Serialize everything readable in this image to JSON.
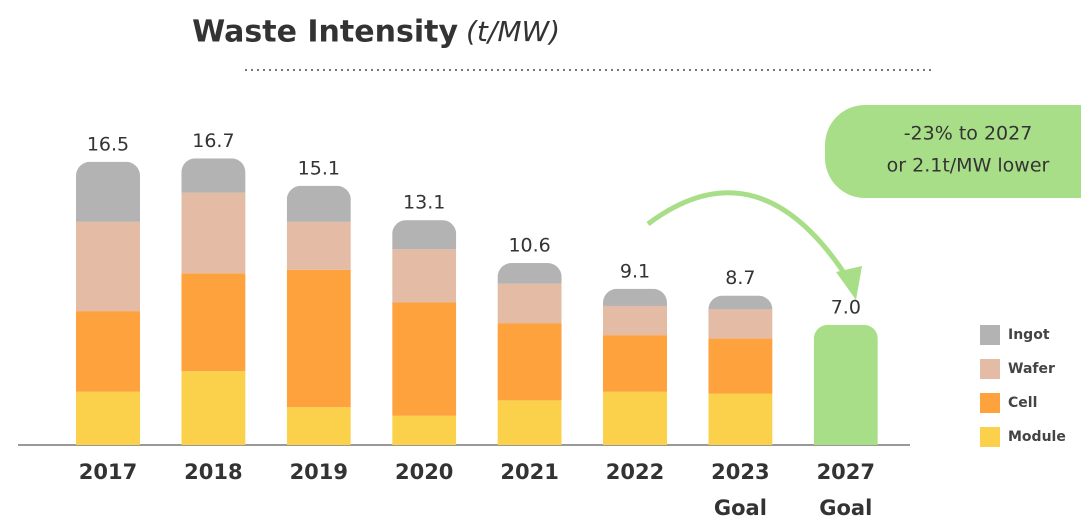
{
  "chart_data": {
    "type": "stacked_bar",
    "title": "Waste Intensity",
    "title_unit": "(t/MW)",
    "categories": [
      "2017",
      "2018",
      "2019",
      "2020",
      "2021",
      "2022",
      "2023 Goal",
      "2027 Goal"
    ],
    "series": [
      {
        "name": "Module",
        "color": "#fbd14b",
        "values": [
          3.1,
          4.3,
          2.2,
          1.7,
          2.6,
          3.1,
          3.0,
          null
        ]
      },
      {
        "name": "Cell",
        "color": "#fea23e",
        "values": [
          4.7,
          5.7,
          8.0,
          6.6,
          4.5,
          3.3,
          3.2,
          null
        ]
      },
      {
        "name": "Wafer",
        "color": "#e4bba4",
        "values": [
          5.2,
          4.7,
          2.8,
          3.1,
          2.3,
          1.7,
          1.7,
          null
        ]
      },
      {
        "name": "Ingot",
        "color": "#b3b3b3",
        "values": [
          3.5,
          2.0,
          2.1,
          1.7,
          1.2,
          1.0,
          0.8,
          null
        ]
      },
      {
        "color": "#a9de88",
        "values": [
          null,
          null,
          null,
          null,
          null,
          null,
          null,
          7.0
        ]
      }
    ],
    "totals": [
      16.5,
      16.7,
      15.1,
      13.1,
      10.6,
      9.1,
      8.7,
      7.0
    ],
    "total_labels": [
      "16.5",
      "16.7",
      "15.1",
      "13.1",
      "10.6",
      "9.1",
      "8.7",
      "7.0"
    ],
    "annotation": [
      "-23% to 2027",
      "or 2.1t/MW lower"
    ],
    "ylim": [
      0,
      18
    ]
  }
}
